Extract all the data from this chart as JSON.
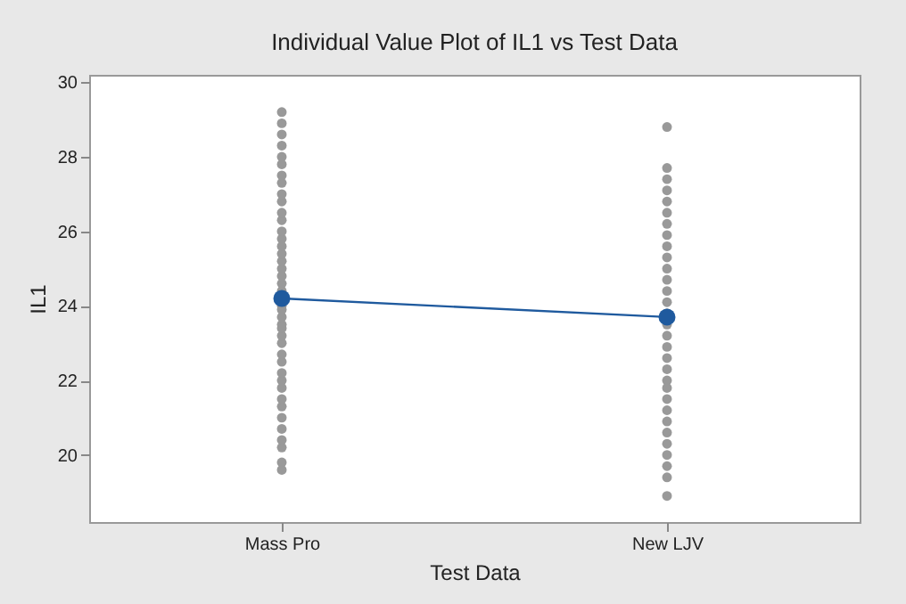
{
  "chart_data": {
    "type": "scatter",
    "title": "Individual Value Plot of IL1 vs Test Data",
    "xlabel": "Test Data",
    "ylabel": "IL1",
    "categories": [
      "Mass Pro",
      "New LJV"
    ],
    "ylim": [
      18.2,
      30.2
    ],
    "yticks": [
      20,
      22,
      24,
      26,
      28,
      30
    ],
    "marker": "circle",
    "series": [
      {
        "color": "#999999",
        "x": [
          "Mass Pro",
          "Mass Pro",
          "Mass Pro",
          "Mass Pro",
          "Mass Pro",
          "Mass Pro",
          "Mass Pro",
          "Mass Pro",
          "Mass Pro",
          "Mass Pro",
          "Mass Pro",
          "Mass Pro",
          "Mass Pro",
          "Mass Pro",
          "Mass Pro",
          "Mass Pro",
          "Mass Pro",
          "Mass Pro",
          "Mass Pro",
          "Mass Pro",
          "Mass Pro",
          "Mass Pro",
          "Mass Pro",
          "Mass Pro",
          "Mass Pro",
          "Mass Pro",
          "Mass Pro",
          "Mass Pro",
          "Mass Pro",
          "Mass Pro",
          "Mass Pro",
          "Mass Pro",
          "Mass Pro",
          "Mass Pro",
          "Mass Pro",
          "Mass Pro",
          "Mass Pro",
          "Mass Pro",
          "Mass Pro",
          "Mass Pro",
          "Mass Pro",
          "New LJV",
          "New LJV",
          "New LJV",
          "New LJV",
          "New LJV",
          "New LJV",
          "New LJV",
          "New LJV",
          "New LJV",
          "New LJV",
          "New LJV",
          "New LJV",
          "New LJV",
          "New LJV",
          "New LJV",
          "New LJV",
          "New LJV",
          "New LJV",
          "New LJV",
          "New LJV",
          "New LJV",
          "New LJV",
          "New LJV",
          "New LJV",
          "New LJV",
          "New LJV",
          "New LJV",
          "New LJV",
          "New LJV",
          "New LJV",
          "New LJV"
        ],
        "values": [
          19.6,
          19.8,
          20.2,
          20.4,
          20.7,
          21.0,
          21.3,
          21.5,
          21.8,
          22.0,
          22.2,
          22.5,
          22.7,
          23.0,
          23.2,
          23.4,
          23.5,
          23.7,
          23.9,
          24.0,
          24.4,
          24.6,
          24.8,
          25.0,
          25.2,
          25.4,
          25.6,
          25.8,
          26.0,
          26.3,
          26.5,
          26.8,
          27.0,
          27.3,
          27.5,
          27.8,
          28.0,
          28.3,
          28.6,
          28.9,
          29.2,
          18.9,
          19.4,
          19.7,
          20.0,
          20.3,
          20.6,
          20.9,
          21.2,
          21.5,
          21.8,
          22.0,
          22.3,
          22.6,
          22.9,
          23.2,
          23.5,
          23.8,
          24.1,
          24.4,
          24.7,
          25.0,
          25.3,
          25.6,
          25.9,
          26.2,
          26.5,
          26.8,
          27.1,
          27.4,
          27.7,
          28.8
        ]
      },
      {
        "type": "line",
        "color": "#1f5a9e",
        "values": [
          24.2,
          23.7
        ]
      }
    ]
  }
}
